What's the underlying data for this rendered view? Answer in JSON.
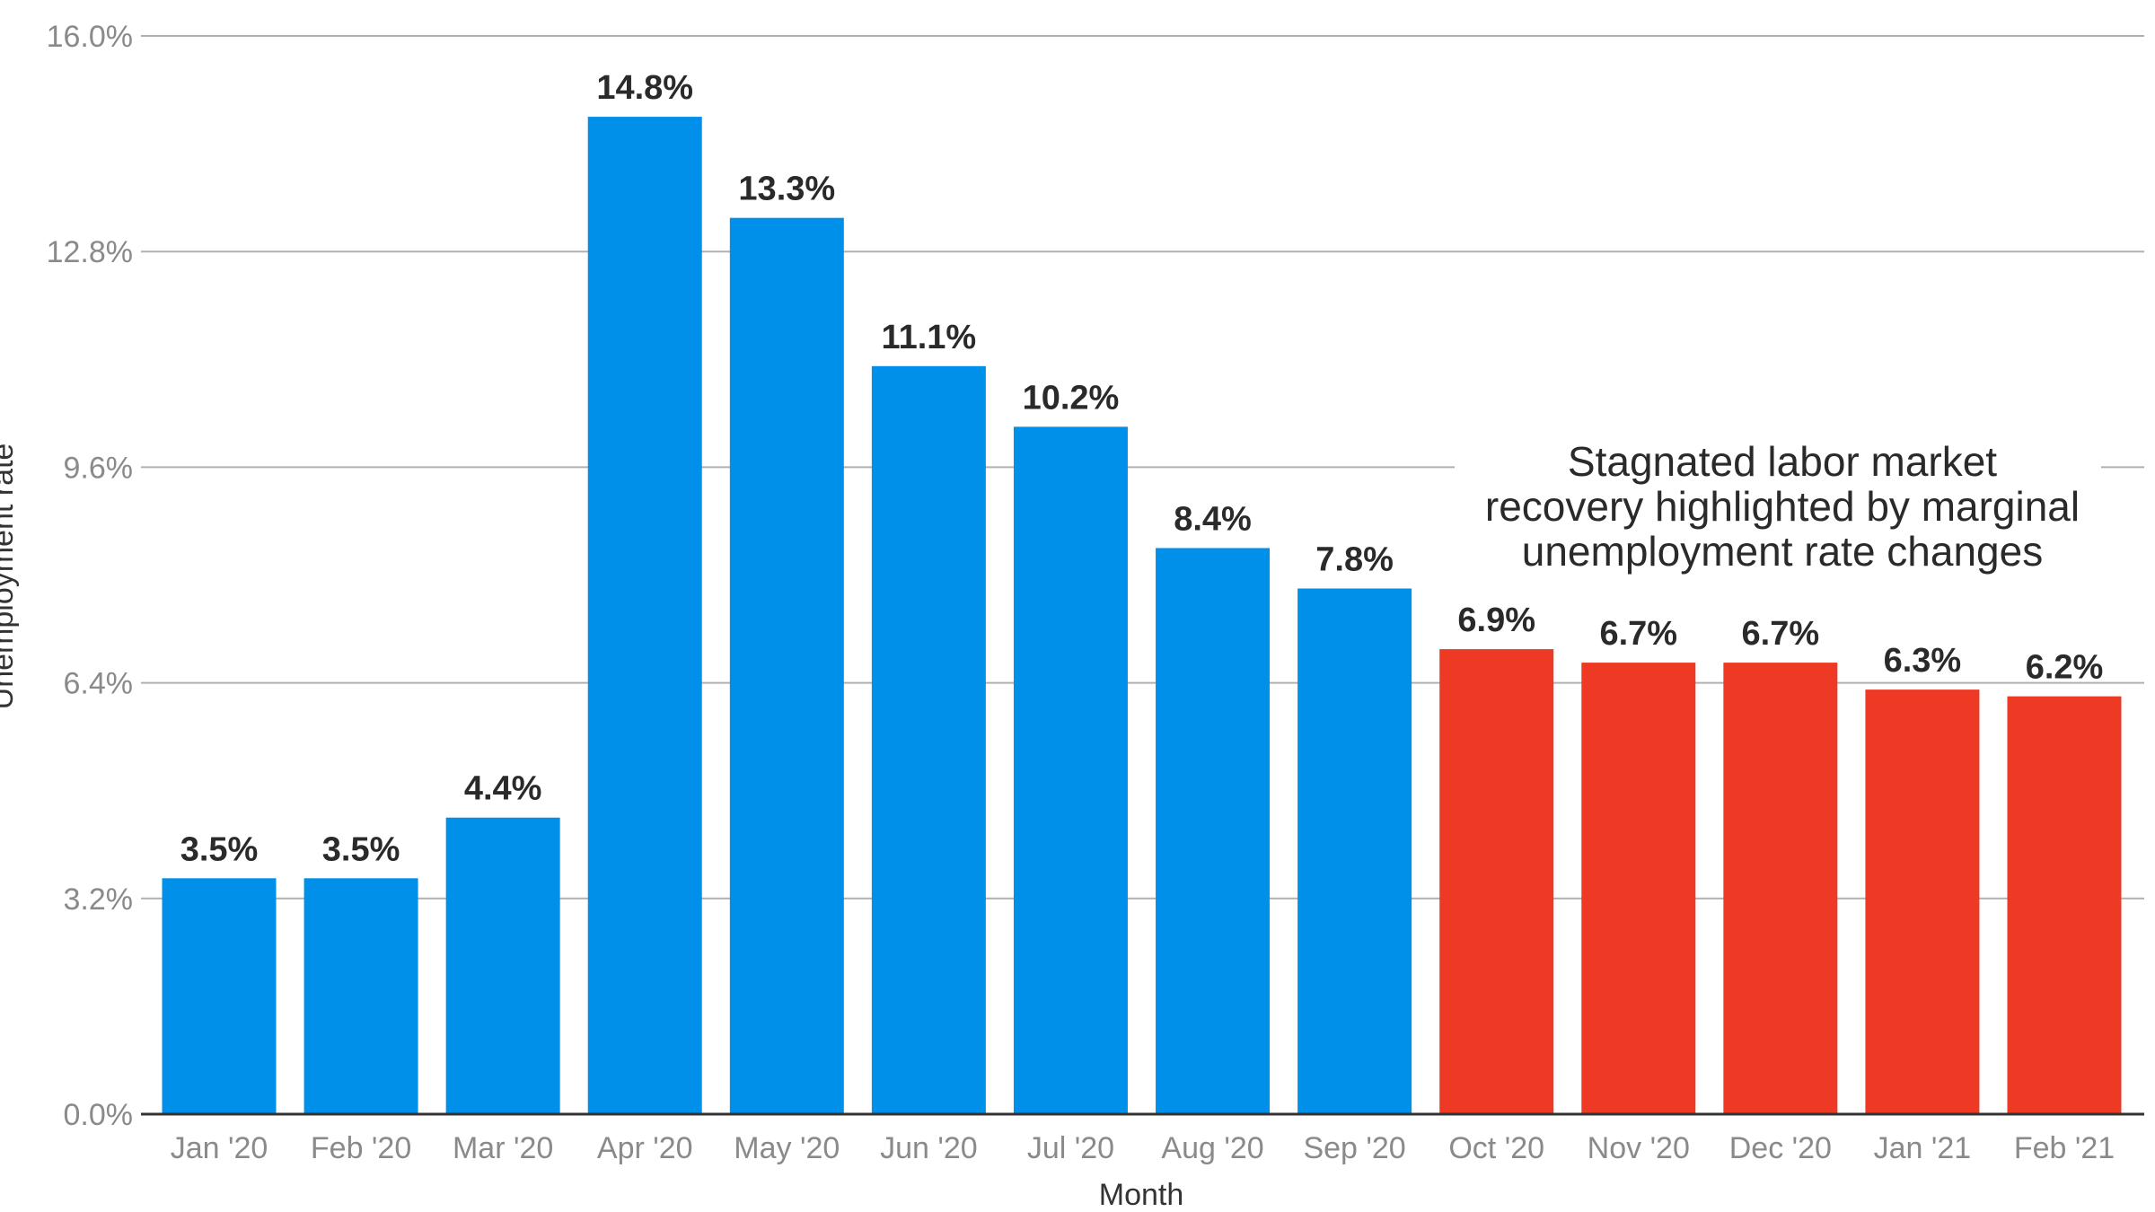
{
  "chart_data": {
    "type": "bar",
    "title": "",
    "xlabel": "Month",
    "ylabel": "Unemployment rate",
    "ylim": [
      0,
      16
    ],
    "yticks": [
      0,
      3.2,
      6.4,
      9.6,
      12.8,
      16
    ],
    "ytick_labels": [
      "0.0%",
      "3.2%",
      "6.4%",
      "9.6%",
      "12.8%",
      "16.0%"
    ],
    "grid": true,
    "categories": [
      "Jan '20",
      "Feb '20",
      "Mar '20",
      "Apr '20",
      "May '20",
      "Jun '20",
      "Jul '20",
      "Aug '20",
      "Sep '20",
      "Oct '20",
      "Nov '20",
      "Dec '20",
      "Jan '21",
      "Feb '21"
    ],
    "values": [
      3.5,
      3.5,
      4.4,
      14.8,
      13.3,
      11.1,
      10.2,
      8.4,
      7.8,
      6.9,
      6.7,
      6.7,
      6.3,
      6.2
    ],
    "value_labels": [
      "3.5%",
      "3.5%",
      "4.4%",
      "14.8%",
      "13.3%",
      "11.1%",
      "10.2%",
      "8.4%",
      "7.8%",
      "6.9%",
      "6.7%",
      "6.7%",
      "6.3%",
      "6.2%"
    ],
    "bar_colors": [
      "#0090EA",
      "#0090EA",
      "#0090EA",
      "#0090EA",
      "#0090EA",
      "#0090EA",
      "#0090EA",
      "#0090EA",
      "#0090EA",
      "#EE3A24",
      "#EE3A24",
      "#EE3A24",
      "#EE3A24",
      "#EE3A24"
    ],
    "annotation": {
      "lines": [
        "Stagnated labor market",
        "recovery highlighted by marginal",
        "unemployment rate changes"
      ]
    }
  },
  "colors": {
    "gridline": "#b0b0b0",
    "baseline": "#333333"
  }
}
